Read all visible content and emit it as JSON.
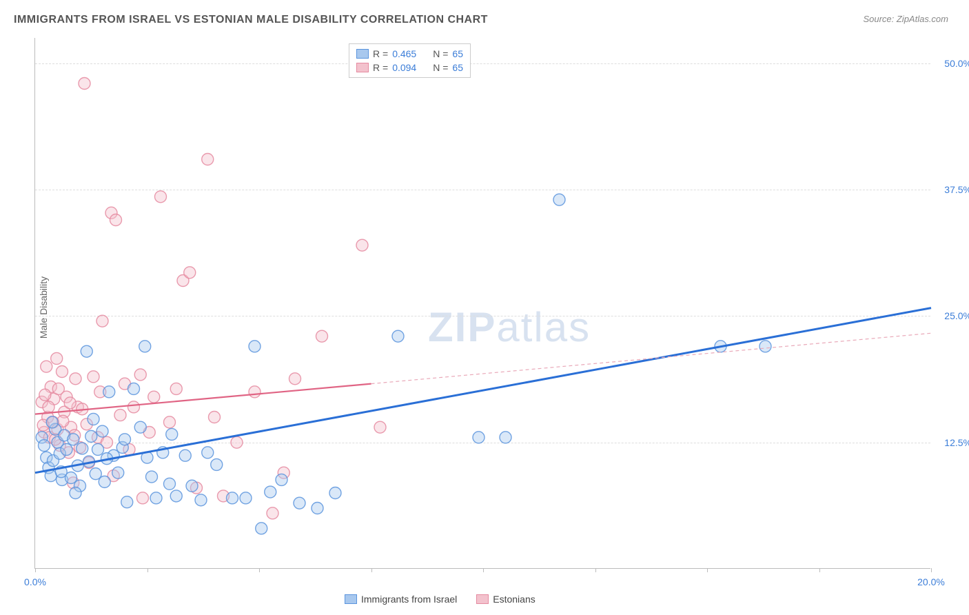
{
  "title": "IMMIGRANTS FROM ISRAEL VS ESTONIAN MALE DISABILITY CORRELATION CHART",
  "source_prefix": "Source: ",
  "source": "ZipAtlas.com",
  "ylabel": "Male Disability",
  "watermark_bold": "ZIP",
  "watermark_rest": "atlas",
  "chart": {
    "type": "scatter",
    "xlim": [
      0,
      20
    ],
    "ylim": [
      0,
      52.5
    ],
    "xtick_labels": {
      "0": "0.0%",
      "20": "20.0%"
    },
    "xtick_marks": [
      0,
      2.5,
      5,
      7.5,
      10,
      12.5,
      15,
      17.5,
      20
    ],
    "ytick_labels": {
      "12.5": "12.5%",
      "25": "25.0%",
      "37.5": "37.5%",
      "50": "50.0%"
    },
    "ytick_marks": [
      12.5,
      25,
      37.5,
      50
    ],
    "background_color": "#ffffff",
    "grid_color": "#dddddd",
    "marker_radius": 8.5,
    "marker_opacity": 0.42,
    "marker_stroke_width": 1.4,
    "series": [
      {
        "name": "Immigrants from Israel",
        "fill": "#a8c8ee",
        "stroke": "#5a94dd",
        "r_label": "R = ",
        "r_value": "0.465",
        "n_label": "N = ",
        "n_value": "65",
        "regression": {
          "x1": 0,
          "y1": 9.5,
          "x2": 20,
          "y2": 25.8,
          "stroke": "#2a6fd6",
          "width": 3
        },
        "points": [
          [
            0.15,
            13.0
          ],
          [
            0.2,
            12.2
          ],
          [
            0.25,
            11.0
          ],
          [
            0.3,
            10.0
          ],
          [
            0.35,
            9.2
          ],
          [
            0.4,
            10.7
          ],
          [
            0.45,
            13.8
          ],
          [
            0.5,
            12.5
          ],
          [
            0.55,
            11.4
          ],
          [
            0.6,
            8.8
          ],
          [
            0.65,
            13.2
          ],
          [
            0.7,
            11.8
          ],
          [
            0.8,
            9.0
          ],
          [
            0.85,
            12.8
          ],
          [
            0.95,
            10.2
          ],
          [
            1.0,
            8.2
          ],
          [
            1.05,
            11.9
          ],
          [
            1.15,
            21.5
          ],
          [
            1.2,
            10.6
          ],
          [
            1.25,
            13.1
          ],
          [
            1.35,
            9.4
          ],
          [
            1.4,
            11.8
          ],
          [
            1.5,
            13.6
          ],
          [
            1.55,
            8.6
          ],
          [
            1.65,
            17.5
          ],
          [
            1.75,
            11.2
          ],
          [
            1.85,
            9.5
          ],
          [
            1.95,
            12.0
          ],
          [
            2.05,
            6.6
          ],
          [
            2.2,
            17.8
          ],
          [
            2.35,
            14.0
          ],
          [
            2.45,
            22.0
          ],
          [
            2.6,
            9.1
          ],
          [
            2.7,
            7.0
          ],
          [
            2.85,
            11.5
          ],
          [
            3.05,
            13.3
          ],
          [
            3.15,
            7.2
          ],
          [
            3.35,
            11.2
          ],
          [
            3.5,
            8.2
          ],
          [
            3.7,
            6.8
          ],
          [
            3.85,
            11.5
          ],
          [
            4.05,
            10.3
          ],
          [
            4.4,
            7.0
          ],
          [
            4.7,
            7.0
          ],
          [
            4.9,
            22.0
          ],
          [
            5.05,
            4.0
          ],
          [
            5.25,
            7.6
          ],
          [
            5.5,
            8.8
          ],
          [
            5.9,
            6.5
          ],
          [
            6.3,
            6.0
          ],
          [
            6.7,
            7.5
          ],
          [
            8.1,
            23.0
          ],
          [
            9.9,
            13.0
          ],
          [
            10.5,
            13.0
          ],
          [
            11.7,
            36.5
          ],
          [
            15.3,
            22.0
          ],
          [
            16.3,
            22.0
          ],
          [
            0.9,
            7.5
          ],
          [
            1.3,
            14.8
          ],
          [
            1.6,
            10.9
          ],
          [
            2.0,
            12.8
          ],
          [
            2.5,
            11.0
          ],
          [
            3.0,
            8.4
          ],
          [
            0.38,
            14.5
          ],
          [
            0.58,
            9.6
          ]
        ]
      },
      {
        "name": "Estonians",
        "fill": "#f3c2cd",
        "stroke": "#e58aa0",
        "r_label": "R = ",
        "r_value": "0.094",
        "n_label": "N = ",
        "n_value": "65",
        "regression_solid": {
          "x1": 0,
          "y1": 15.3,
          "x2": 7.5,
          "y2": 18.3,
          "stroke": "#e06484",
          "width": 2.2
        },
        "regression_dashed": {
          "x1": 7.5,
          "y1": 18.3,
          "x2": 20,
          "y2": 23.3,
          "stroke": "#e9a8b8",
          "width": 1.2,
          "dash": "5,4"
        },
        "points": [
          [
            0.15,
            16.5
          ],
          [
            0.2,
            13.5
          ],
          [
            0.25,
            20.0
          ],
          [
            0.28,
            15.0
          ],
          [
            0.32,
            13.0
          ],
          [
            0.35,
            18.0
          ],
          [
            0.4,
            14.5
          ],
          [
            0.42,
            16.8
          ],
          [
            0.48,
            20.8
          ],
          [
            0.5,
            13.8
          ],
          [
            0.55,
            12.2
          ],
          [
            0.6,
            19.5
          ],
          [
            0.65,
            15.5
          ],
          [
            0.7,
            17.0
          ],
          [
            0.75,
            11.5
          ],
          [
            0.8,
            14.0
          ],
          [
            0.85,
            8.5
          ],
          [
            0.9,
            18.8
          ],
          [
            0.95,
            16.0
          ],
          [
            1.0,
            12.0
          ],
          [
            1.1,
            48.0
          ],
          [
            1.15,
            14.3
          ],
          [
            1.2,
            10.5
          ],
          [
            1.3,
            19.0
          ],
          [
            1.4,
            13.0
          ],
          [
            1.45,
            17.5
          ],
          [
            1.5,
            24.5
          ],
          [
            1.6,
            12.5
          ],
          [
            1.7,
            35.2
          ],
          [
            1.75,
            9.2
          ],
          [
            1.8,
            34.5
          ],
          [
            1.9,
            15.2
          ],
          [
            2.0,
            18.3
          ],
          [
            2.1,
            11.8
          ],
          [
            2.2,
            16.0
          ],
          [
            2.35,
            19.2
          ],
          [
            2.4,
            7.0
          ],
          [
            2.55,
            13.5
          ],
          [
            2.65,
            17.0
          ],
          [
            2.8,
            36.8
          ],
          [
            3.0,
            14.5
          ],
          [
            3.15,
            17.8
          ],
          [
            3.3,
            28.5
          ],
          [
            3.45,
            29.3
          ],
          [
            3.6,
            8.0
          ],
          [
            3.85,
            40.5
          ],
          [
            4.0,
            15.0
          ],
          [
            4.2,
            7.2
          ],
          [
            4.5,
            12.5
          ],
          [
            4.9,
            17.5
          ],
          [
            5.3,
            5.5
          ],
          [
            5.55,
            9.5
          ],
          [
            5.8,
            18.8
          ],
          [
            6.4,
            23.0
          ],
          [
            7.3,
            32.0
          ],
          [
            7.7,
            14.0
          ],
          [
            0.18,
            14.2
          ],
          [
            0.22,
            17.2
          ],
          [
            0.3,
            16.0
          ],
          [
            0.45,
            12.8
          ],
          [
            0.52,
            17.8
          ],
          [
            0.62,
            14.6
          ],
          [
            0.78,
            16.4
          ],
          [
            0.88,
            13.2
          ],
          [
            1.05,
            15.8
          ]
        ]
      }
    ]
  }
}
